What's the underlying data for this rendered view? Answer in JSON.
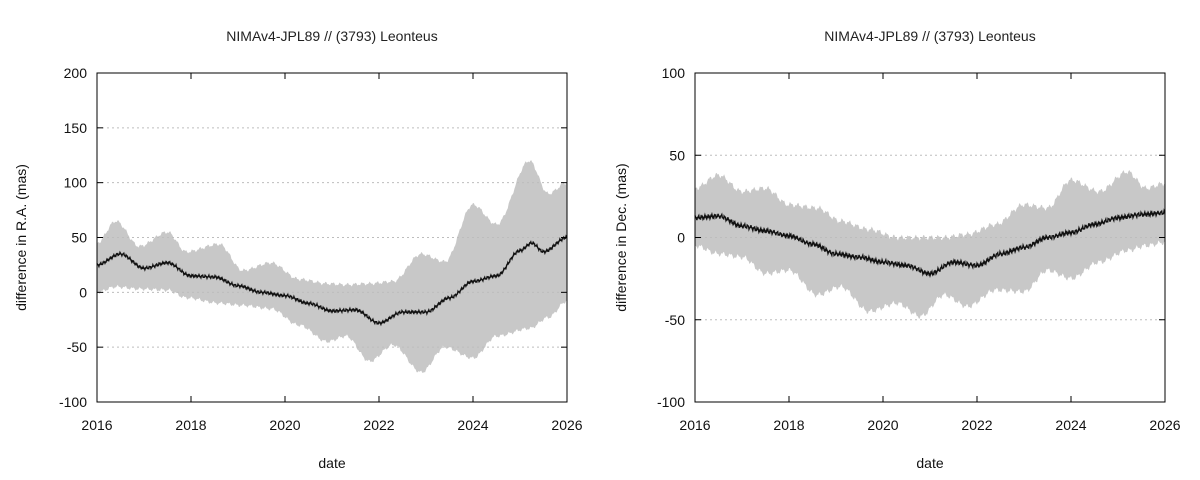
{
  "chart_data": [
    {
      "type": "line",
      "title": "NIMAv4-JPL89 // (3793) Leonteus",
      "xlabel": "date",
      "ylabel": "difference in R.A. (mas)",
      "xlim": [
        2016,
        2026
      ],
      "ylim": [
        -100,
        200
      ],
      "x_ticks": [
        "2016",
        "2018",
        "2020",
        "2022",
        "2024",
        "2026"
      ],
      "y_ticks": [
        "200",
        "150",
        "100",
        "50",
        "0",
        "-50",
        "-100"
      ],
      "grid": "horizontal-dotted",
      "series": [
        {
          "name": "mean difference",
          "x": [
            2016,
            2016.5,
            2017,
            2017.5,
            2018,
            2018.5,
            2019,
            2019.5,
            2020,
            2020.5,
            2021,
            2021.5,
            2022,
            2022.5,
            2023,
            2023.5,
            2024,
            2024.5,
            2025,
            2025.25,
            2025.5,
            2026
          ],
          "values": [
            25,
            35,
            22,
            27,
            15,
            14,
            6,
            0,
            -3,
            -10,
            -17,
            -16,
            -28,
            -18,
            -18,
            -5,
            10,
            15,
            38,
            45,
            37,
            50
          ]
        },
        {
          "name": "uncertainty band",
          "x": [
            2016,
            2016.4,
            2016.9,
            2017.5,
            2017.9,
            2018.6,
            2019.1,
            2019.7,
            2020.3,
            2020.9,
            2021.3,
            2021.8,
            2022.3,
            2022.9,
            2023.4,
            2024.0,
            2024.5,
            2025.2,
            2025.6,
            2026
          ],
          "upper": [
            45,
            65,
            42,
            55,
            37,
            44,
            20,
            27,
            12,
            8,
            7,
            8,
            10,
            35,
            28,
            80,
            62,
            120,
            90,
            100
          ],
          "lower": [
            0,
            5,
            3,
            2,
            -5,
            -10,
            -12,
            -15,
            -30,
            -45,
            -40,
            -63,
            -48,
            -73,
            -50,
            -60,
            -40,
            -33,
            -23,
            -8
          ]
        }
      ]
    },
    {
      "type": "line",
      "title": "NIMAv4-JPL89 // (3793) Leonteus",
      "xlabel": "date",
      "ylabel": "difference in Dec. (mas)",
      "xlim": [
        2016,
        2026
      ],
      "ylim": [
        -100,
        100
      ],
      "x_ticks": [
        "2016",
        "2018",
        "2020",
        "2022",
        "2024",
        "2026"
      ],
      "y_ticks": [
        "100",
        "50",
        "0",
        "-50",
        "-100"
      ],
      "grid": "horizontal-dotted",
      "series": [
        {
          "name": "mean difference",
          "x": [
            2016,
            2016.5,
            2017,
            2017.5,
            2018,
            2018.5,
            2019,
            2019.5,
            2020,
            2020.5,
            2021,
            2021.5,
            2022,
            2022.5,
            2023,
            2023.5,
            2024,
            2024.5,
            2025,
            2025.5,
            2026
          ],
          "values": [
            12,
            13,
            7,
            4,
            1,
            -4,
            -10,
            -12,
            -15,
            -17,
            -22,
            -15,
            -17,
            -10,
            -6,
            0,
            3,
            8,
            12,
            14,
            15
          ]
        },
        {
          "name": "uncertainty band",
          "x": [
            2016,
            2016.5,
            2017,
            2017.5,
            2018,
            2018.6,
            2019.1,
            2019.7,
            2020.3,
            2020.8,
            2021.3,
            2021.8,
            2022.4,
            2023.0,
            2023.5,
            2024.0,
            2024.6,
            2025.2,
            2025.6,
            2026
          ],
          "upper": [
            30,
            38,
            28,
            30,
            20,
            18,
            10,
            5,
            0,
            0,
            0,
            2,
            8,
            20,
            18,
            35,
            28,
            40,
            30,
            33
          ],
          "lower": [
            -5,
            -10,
            -12,
            -22,
            -20,
            -35,
            -30,
            -45,
            -40,
            -48,
            -35,
            -42,
            -32,
            -33,
            -20,
            -25,
            -15,
            -8,
            -5,
            -3
          ]
        }
      ]
    }
  ]
}
